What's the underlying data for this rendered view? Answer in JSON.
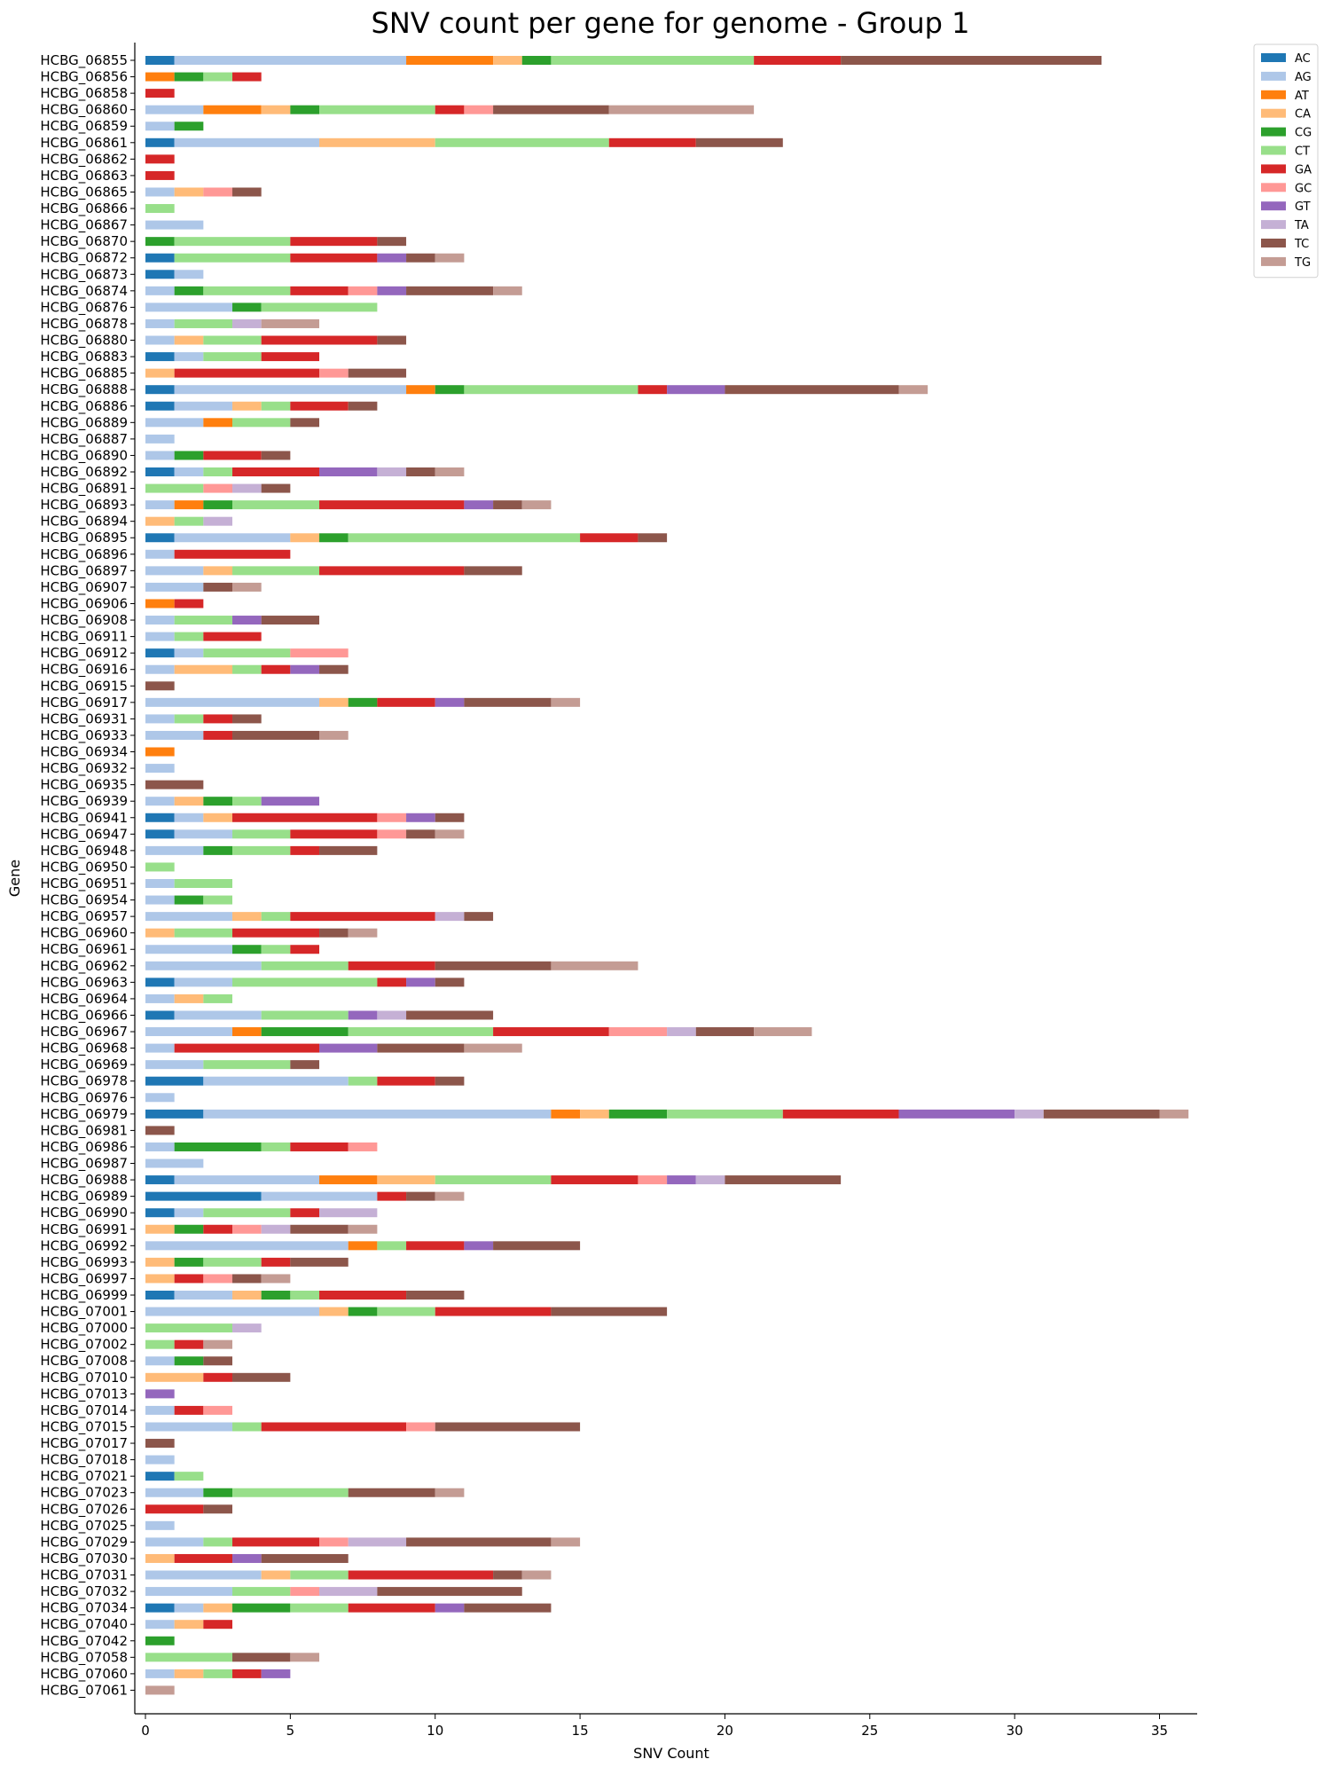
{
  "chart_data": {
    "type": "bar",
    "orientation": "horizontal",
    "stacked": true,
    "title": "SNV count per gene for genome - Group 1",
    "xlabel": "SNV Count",
    "ylabel": "Gene",
    "xlim": [
      0,
      36.3
    ],
    "xticks": [
      0,
      5,
      10,
      15,
      20,
      25,
      30,
      35
    ],
    "grid": false,
    "legend_position": "top-right-outside",
    "series_order": [
      "AC",
      "AG",
      "AT",
      "CA",
      "CG",
      "CT",
      "GA",
      "GC",
      "GT",
      "TA",
      "TC",
      "TG"
    ],
    "colors": {
      "AC": "#1f77b4",
      "AG": "#aec7e8",
      "AT": "#ff7f0e",
      "CA": "#ffbb78",
      "CG": "#2ca02c",
      "CT": "#98df8a",
      "GA": "#d62728",
      "GC": "#ff9896",
      "GT": "#9467bd",
      "TA": "#c5b0d5",
      "TC": "#8c564b",
      "TG": "#c49c94"
    },
    "genes": [
      {
        "name": "HCBG_06855",
        "counts": {
          "AC": 1,
          "AG": 8,
          "AT": 3,
          "CA": 1,
          "CG": 1,
          "CT": 7,
          "GA": 3,
          "TC": 9
        }
      },
      {
        "name": "HCBG_06856",
        "counts": {
          "AT": 1,
          "CG": 1,
          "CT": 1,
          "GA": 1
        }
      },
      {
        "name": "HCBG_06858",
        "counts": {
          "GA": 1
        }
      },
      {
        "name": "HCBG_06860",
        "counts": {
          "AG": 2,
          "AT": 2,
          "CA": 1,
          "CG": 1,
          "CT": 4,
          "GA": 1,
          "GC": 1,
          "TC": 4,
          "TG": 5
        }
      },
      {
        "name": "HCBG_06859",
        "counts": {
          "AG": 1,
          "CG": 1
        }
      },
      {
        "name": "HCBG_06861",
        "counts": {
          "AC": 1,
          "AG": 5,
          "CA": 4,
          "CT": 6,
          "GA": 3,
          "TC": 3
        }
      },
      {
        "name": "HCBG_06862",
        "counts": {
          "GA": 1
        }
      },
      {
        "name": "HCBG_06863",
        "counts": {
          "GA": 1
        }
      },
      {
        "name": "HCBG_06865",
        "counts": {
          "AG": 1,
          "CA": 1,
          "GC": 1,
          "TC": 1
        }
      },
      {
        "name": "HCBG_06866",
        "counts": {
          "CT": 1
        }
      },
      {
        "name": "HCBG_06867",
        "counts": {
          "AG": 2
        }
      },
      {
        "name": "HCBG_06870",
        "counts": {
          "CG": 1,
          "CT": 4,
          "GA": 3,
          "TC": 1
        }
      },
      {
        "name": "HCBG_06872",
        "counts": {
          "AC": 1,
          "CT": 4,
          "GA": 3,
          "GT": 1,
          "TC": 1,
          "TG": 1
        }
      },
      {
        "name": "HCBG_06873",
        "counts": {
          "AC": 1,
          "AG": 1
        }
      },
      {
        "name": "HCBG_06874",
        "counts": {
          "AG": 1,
          "CG": 1,
          "CT": 3,
          "GA": 2,
          "GC": 1,
          "GT": 1,
          "TC": 3,
          "TG": 1
        }
      },
      {
        "name": "HCBG_06876",
        "counts": {
          "AG": 3,
          "CG": 1,
          "CT": 4
        }
      },
      {
        "name": "HCBG_06878",
        "counts": {
          "AG": 1,
          "CT": 2,
          "TA": 1,
          "TG": 2
        }
      },
      {
        "name": "HCBG_06880",
        "counts": {
          "AG": 1,
          "CA": 1,
          "CT": 2,
          "GA": 4,
          "TC": 1
        }
      },
      {
        "name": "HCBG_06883",
        "counts": {
          "AC": 1,
          "AG": 1,
          "CT": 2,
          "GA": 2
        }
      },
      {
        "name": "HCBG_06885",
        "counts": {
          "CA": 1,
          "GA": 5,
          "GC": 1,
          "TC": 2
        }
      },
      {
        "name": "HCBG_06888",
        "counts": {
          "AC": 1,
          "AG": 8,
          "AT": 1,
          "CG": 1,
          "CT": 6,
          "GA": 1,
          "GT": 2,
          "TC": 6,
          "TG": 1
        }
      },
      {
        "name": "HCBG_06886",
        "counts": {
          "AC": 1,
          "AG": 2,
          "CA": 1,
          "CT": 1,
          "GA": 2,
          "TC": 1
        }
      },
      {
        "name": "HCBG_06889",
        "counts": {
          "AG": 2,
          "AT": 1,
          "CT": 2,
          "TC": 1
        }
      },
      {
        "name": "HCBG_06887",
        "counts": {
          "AG": 1
        }
      },
      {
        "name": "HCBG_06890",
        "counts": {
          "AG": 1,
          "CG": 1,
          "GA": 2,
          "TC": 1
        }
      },
      {
        "name": "HCBG_06892",
        "counts": {
          "AC": 1,
          "AG": 1,
          "CT": 1,
          "GA": 3,
          "GT": 2,
          "TA": 1,
          "TC": 1,
          "TG": 1
        }
      },
      {
        "name": "HCBG_06891",
        "counts": {
          "CT": 2,
          "GC": 1,
          "TA": 1,
          "TC": 1
        }
      },
      {
        "name": "HCBG_06893",
        "counts": {
          "AG": 1,
          "AT": 1,
          "CG": 1,
          "CT": 3,
          "GA": 5,
          "GT": 1,
          "TC": 1,
          "TG": 1
        }
      },
      {
        "name": "HCBG_06894",
        "counts": {
          "CA": 1,
          "CT": 1,
          "TA": 1
        }
      },
      {
        "name": "HCBG_06895",
        "counts": {
          "AC": 1,
          "AG": 4,
          "CA": 1,
          "CG": 1,
          "CT": 8,
          "GA": 2,
          "TC": 1
        }
      },
      {
        "name": "HCBG_06896",
        "counts": {
          "AG": 1,
          "GA": 4
        }
      },
      {
        "name": "HCBG_06897",
        "counts": {
          "AG": 2,
          "CA": 1,
          "CT": 3,
          "GA": 5,
          "TC": 2
        }
      },
      {
        "name": "HCBG_06907",
        "counts": {
          "AG": 2,
          "TC": 1,
          "TG": 1
        }
      },
      {
        "name": "HCBG_06906",
        "counts": {
          "AT": 1,
          "GA": 1
        }
      },
      {
        "name": "HCBG_06908",
        "counts": {
          "AG": 1,
          "CT": 2,
          "GT": 1,
          "TC": 2
        }
      },
      {
        "name": "HCBG_06911",
        "counts": {
          "AG": 1,
          "CT": 1,
          "GA": 2
        }
      },
      {
        "name": "HCBG_06912",
        "counts": {
          "AC": 1,
          "AG": 1,
          "CT": 3,
          "GC": 2
        }
      },
      {
        "name": "HCBG_06916",
        "counts": {
          "AG": 1,
          "CA": 2,
          "CT": 1,
          "GA": 1,
          "GT": 1,
          "TC": 1
        }
      },
      {
        "name": "HCBG_06915",
        "counts": {
          "TC": 1
        }
      },
      {
        "name": "HCBG_06917",
        "counts": {
          "AG": 6,
          "CA": 1,
          "CG": 1,
          "GA": 2,
          "GT": 1,
          "TC": 3,
          "TG": 1
        }
      },
      {
        "name": "HCBG_06931",
        "counts": {
          "AG": 1,
          "CT": 1,
          "GA": 1,
          "TC": 1
        }
      },
      {
        "name": "HCBG_06933",
        "counts": {
          "AG": 2,
          "GA": 1,
          "TC": 3,
          "TG": 1
        }
      },
      {
        "name": "HCBG_06934",
        "counts": {
          "AT": 1
        }
      },
      {
        "name": "HCBG_06932",
        "counts": {
          "AG": 1
        }
      },
      {
        "name": "HCBG_06935",
        "counts": {
          "TC": 2
        }
      },
      {
        "name": "HCBG_06939",
        "counts": {
          "AG": 1,
          "CA": 1,
          "CG": 1,
          "CT": 1,
          "GT": 2
        }
      },
      {
        "name": "HCBG_06941",
        "counts": {
          "AC": 1,
          "AG": 1,
          "CA": 1,
          "GA": 5,
          "GC": 1,
          "GT": 1,
          "TC": 1
        }
      },
      {
        "name": "HCBG_06947",
        "counts": {
          "AC": 1,
          "AG": 2,
          "CT": 2,
          "GA": 3,
          "GC": 1,
          "TC": 1,
          "TG": 1
        }
      },
      {
        "name": "HCBG_06948",
        "counts": {
          "AG": 2,
          "CG": 1,
          "CT": 2,
          "GA": 1,
          "TC": 2
        }
      },
      {
        "name": "HCBG_06950",
        "counts": {
          "CT": 1
        }
      },
      {
        "name": "HCBG_06951",
        "counts": {
          "AG": 1,
          "CT": 2
        }
      },
      {
        "name": "HCBG_06954",
        "counts": {
          "AG": 1,
          "CG": 1,
          "CT": 1
        }
      },
      {
        "name": "HCBG_06957",
        "counts": {
          "AG": 3,
          "CA": 1,
          "CT": 1,
          "GA": 5,
          "TA": 1,
          "TC": 1
        }
      },
      {
        "name": "HCBG_06960",
        "counts": {
          "CA": 1,
          "CT": 2,
          "GA": 3,
          "TC": 1,
          "TG": 1
        }
      },
      {
        "name": "HCBG_06961",
        "counts": {
          "AG": 3,
          "CG": 1,
          "CT": 1,
          "GA": 1
        }
      },
      {
        "name": "HCBG_06962",
        "counts": {
          "AG": 4,
          "CT": 3,
          "GA": 3,
          "TC": 4,
          "TG": 3
        }
      },
      {
        "name": "HCBG_06963",
        "counts": {
          "AC": 1,
          "AG": 2,
          "CT": 5,
          "GA": 1,
          "GT": 1,
          "TC": 1
        }
      },
      {
        "name": "HCBG_06964",
        "counts": {
          "AG": 1,
          "CA": 1,
          "CT": 1
        }
      },
      {
        "name": "HCBG_06966",
        "counts": {
          "AC": 1,
          "AG": 3,
          "CT": 3,
          "GT": 1,
          "TA": 1,
          "TC": 3
        }
      },
      {
        "name": "HCBG_06967",
        "counts": {
          "AG": 3,
          "AT": 1,
          "CG": 3,
          "CT": 5,
          "GA": 4,
          "GC": 2,
          "TA": 1,
          "TC": 2,
          "TG": 2
        }
      },
      {
        "name": "HCBG_06968",
        "counts": {
          "AG": 1,
          "GA": 5,
          "GT": 2,
          "TC": 3,
          "TG": 2
        }
      },
      {
        "name": "HCBG_06969",
        "counts": {
          "AG": 2,
          "CT": 3,
          "TC": 1
        }
      },
      {
        "name": "HCBG_06978",
        "counts": {
          "AC": 2,
          "AG": 5,
          "CT": 1,
          "GA": 2,
          "TC": 1
        }
      },
      {
        "name": "HCBG_06976",
        "counts": {
          "AG": 1
        }
      },
      {
        "name": "HCBG_06979",
        "counts": {
          "AC": 2,
          "AG": 12,
          "AT": 1,
          "CA": 1,
          "CG": 2,
          "CT": 4,
          "GA": 4,
          "GT": 4,
          "TA": 1,
          "TC": 4,
          "TG": 1
        }
      },
      {
        "name": "HCBG_06981",
        "counts": {
          "TC": 1
        }
      },
      {
        "name": "HCBG_06986",
        "counts": {
          "AG": 1,
          "CG": 3,
          "CT": 1,
          "GA": 2,
          "GC": 1
        }
      },
      {
        "name": "HCBG_06987",
        "counts": {
          "AG": 2
        }
      },
      {
        "name": "HCBG_06988",
        "counts": {
          "AC": 1,
          "AG": 5,
          "AT": 2,
          "CA": 2,
          "CT": 4,
          "GA": 3,
          "GC": 1,
          "GT": 1,
          "TA": 1,
          "TC": 4
        }
      },
      {
        "name": "HCBG_06989",
        "counts": {
          "AC": 4,
          "AG": 4,
          "GA": 1,
          "TC": 1,
          "TG": 1
        }
      },
      {
        "name": "HCBG_06990",
        "counts": {
          "AC": 1,
          "AG": 1,
          "CT": 3,
          "GA": 1,
          "TA": 2
        }
      },
      {
        "name": "HCBG_06991",
        "counts": {
          "CA": 1,
          "CG": 1,
          "GA": 1,
          "GC": 1,
          "TA": 1,
          "TC": 2,
          "TG": 1
        }
      },
      {
        "name": "HCBG_06992",
        "counts": {
          "AG": 7,
          "AT": 1,
          "CT": 1,
          "GA": 2,
          "GT": 1,
          "TC": 3
        }
      },
      {
        "name": "HCBG_06993",
        "counts": {
          "CA": 1,
          "CG": 1,
          "CT": 2,
          "GA": 1,
          "TC": 2
        }
      },
      {
        "name": "HCBG_06997",
        "counts": {
          "CA": 1,
          "GA": 1,
          "GC": 1,
          "TC": 1,
          "TG": 1
        }
      },
      {
        "name": "HCBG_06999",
        "counts": {
          "AC": 1,
          "AG": 2,
          "CA": 1,
          "CG": 1,
          "CT": 1,
          "GA": 3,
          "TC": 2
        }
      },
      {
        "name": "HCBG_07001",
        "counts": {
          "AG": 6,
          "CA": 1,
          "CG": 1,
          "CT": 2,
          "GA": 4,
          "TC": 4
        }
      },
      {
        "name": "HCBG_07000",
        "counts": {
          "CT": 3,
          "TA": 1
        }
      },
      {
        "name": "HCBG_07002",
        "counts": {
          "CT": 1,
          "GA": 1,
          "TG": 1
        }
      },
      {
        "name": "HCBG_07008",
        "counts": {
          "AG": 1,
          "CG": 1,
          "TC": 1
        }
      },
      {
        "name": "HCBG_07010",
        "counts": {
          "CA": 2,
          "GA": 1,
          "TC": 2
        }
      },
      {
        "name": "HCBG_07013",
        "counts": {
          "GT": 1
        }
      },
      {
        "name": "HCBG_07014",
        "counts": {
          "AG": 1,
          "GA": 1,
          "GC": 1
        }
      },
      {
        "name": "HCBG_07015",
        "counts": {
          "AG": 3,
          "CT": 1,
          "GA": 5,
          "GC": 1,
          "TC": 5
        }
      },
      {
        "name": "HCBG_07017",
        "counts": {
          "TC": 1
        }
      },
      {
        "name": "HCBG_07018",
        "counts": {
          "AG": 1
        }
      },
      {
        "name": "HCBG_07021",
        "counts": {
          "AC": 1,
          "CT": 1
        }
      },
      {
        "name": "HCBG_07023",
        "counts": {
          "AG": 2,
          "CG": 1,
          "CT": 4,
          "TC": 3,
          "TG": 1
        }
      },
      {
        "name": "HCBG_07026",
        "counts": {
          "GA": 2,
          "TC": 1
        }
      },
      {
        "name": "HCBG_07025",
        "counts": {
          "AG": 1
        }
      },
      {
        "name": "HCBG_07029",
        "counts": {
          "AG": 2,
          "CT": 1,
          "GA": 3,
          "GC": 1,
          "TA": 2,
          "TC": 5,
          "TG": 1
        }
      },
      {
        "name": "HCBG_07030",
        "counts": {
          "CA": 1,
          "GA": 2,
          "GT": 1,
          "TC": 3
        }
      },
      {
        "name": "HCBG_07031",
        "counts": {
          "AG": 4,
          "CA": 1,
          "CT": 2,
          "GA": 5,
          "TC": 1,
          "TG": 1
        }
      },
      {
        "name": "HCBG_07032",
        "counts": {
          "AG": 3,
          "CT": 2,
          "GC": 1,
          "TA": 2,
          "TC": 5
        }
      },
      {
        "name": "HCBG_07034",
        "counts": {
          "AC": 1,
          "AG": 1,
          "CA": 1,
          "CG": 2,
          "CT": 2,
          "GA": 3,
          "GT": 1,
          "TC": 3
        }
      },
      {
        "name": "HCBG_07040",
        "counts": {
          "AG": 1,
          "CA": 1,
          "GA": 1
        }
      },
      {
        "name": "HCBG_07042",
        "counts": {
          "CG": 1
        }
      },
      {
        "name": "HCBG_07058",
        "counts": {
          "CT": 3,
          "TC": 2,
          "TG": 1
        }
      },
      {
        "name": "HCBG_07060",
        "counts": {
          "AG": 1,
          "CA": 1,
          "CT": 1,
          "GA": 1,
          "GT": 1
        }
      },
      {
        "name": "HCBG_07061",
        "counts": {
          "TG": 1
        }
      }
    ]
  }
}
